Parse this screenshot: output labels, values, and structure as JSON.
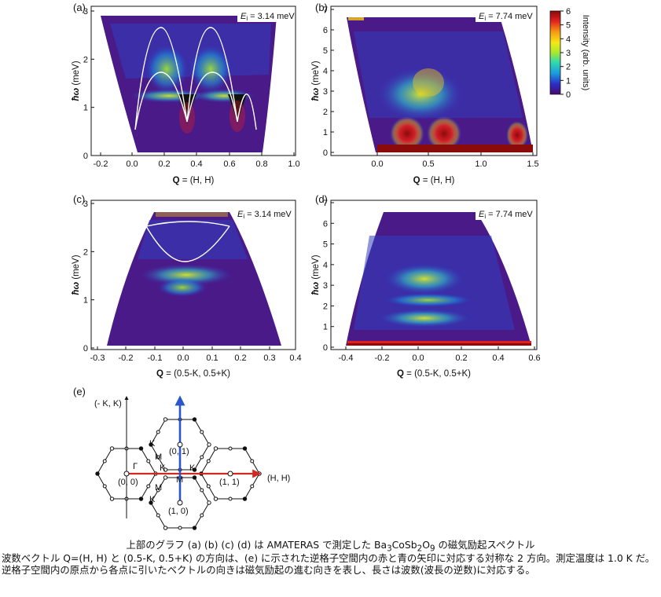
{
  "panels": [
    {
      "id": "a",
      "label": "(a)",
      "ei_var": "E",
      "ei_sub": "i",
      "ei_value": " = 3.14 meV",
      "ylabel_h": "ħω",
      "ylabel_u": " (meV)",
      "xlabel_q": "Q",
      "xlabel_rest": " = (H, H)",
      "xticks": [
        "-0.2",
        "0.0",
        "0.2",
        "0.4",
        "0.6",
        "0.8",
        "1.0"
      ],
      "yticks": [
        "0",
        "1",
        "2",
        "3"
      ]
    },
    {
      "id": "b",
      "label": "(b)",
      "ei_var": "E",
      "ei_sub": "i",
      "ei_value": " = 7.74 meV",
      "ylabel_h": "ħω",
      "ylabel_u": " (meV)",
      "xlabel_q": "Q",
      "xlabel_rest": " = (H, H)",
      "xticks": [
        "0.0",
        "0.5",
        "1.0",
        "1.5"
      ],
      "yticks": [
        "0",
        "1",
        "2",
        "3",
        "4",
        "5",
        "6",
        "7"
      ]
    },
    {
      "id": "c",
      "label": "(c)",
      "ei_var": "E",
      "ei_sub": "i",
      "ei_value": " = 3.14 meV",
      "ylabel_h": "ħω",
      "ylabel_u": " (meV)",
      "xlabel_q": "Q",
      "xlabel_rest": " = (0.5-K, 0.5+K)",
      "xticks": [
        "-0.3",
        "-0.2",
        "-0.1",
        "0.0",
        "0.1",
        "0.2",
        "0.3",
        "0.4"
      ],
      "yticks": [
        "0",
        "1",
        "2",
        "3"
      ]
    },
    {
      "id": "d",
      "label": "(d)",
      "ei_var": "E",
      "ei_sub": "i",
      "ei_value": " = 7.74 meV",
      "ylabel_h": "ħω",
      "ylabel_u": " (meV)",
      "xlabel_q": "Q",
      "xlabel_rest": " = (0.5-K, 0.5+K)",
      "xticks": [
        "-0.4",
        "-0.2",
        "0.0",
        "0.2",
        "0.4",
        "0.6"
      ],
      "yticks": [
        "0",
        "1",
        "2",
        "3",
        "4",
        "5",
        "6",
        "7"
      ]
    }
  ],
  "colorbar": {
    "label": "Intensity (arb. units)",
    "ticks": [
      "6",
      "5",
      "4",
      "3",
      "2",
      "1",
      "0"
    ],
    "colors": [
      "#4a0a6b",
      "#2b2bc8",
      "#1a9be0",
      "#2ed9b0",
      "#a8e830",
      "#f5e814",
      "#f59a12",
      "#e21f1f",
      "#8b0a0a"
    ]
  },
  "panel_e": {
    "label": "(e)",
    "y_axis_label": "(- K, K)",
    "x_axis_label": "(H, H)",
    "points": {
      "gamma": "Γ",
      "origin": "(0, 0)",
      "p01": "(0, 1)",
      "p11": "(1, 1)",
      "p10": "(1, 0)",
      "k1": "K",
      "k2": "K",
      "k3": "K",
      "k4": "K",
      "m1": "M",
      "m2": "M",
      "m3": "M"
    },
    "colors": {
      "red_arrow": "#d12b1f",
      "blue_arrow": "#2a56c9"
    }
  },
  "caption": {
    "title_parts": [
      "上部のグラフ (a) (b) (c) (d) は AMATERAS で測定した Ba",
      "3",
      "CoSb",
      "2",
      "O",
      "9",
      " の磁気励起スペクトル"
    ],
    "body": "波数ベクトル Q=(H, H) と (0.5-K, 0.5+K) の方向は、(e) に示された逆格子空間内の赤と青の矢印に対応する対称な 2 方向。測定温度は 1.0 K だ。逆格子空間内の原点から各点に引いたベクトルの向きは磁気励起の進む向きを表し、長さは波数(波長の逆数)に対応する。"
  }
}
